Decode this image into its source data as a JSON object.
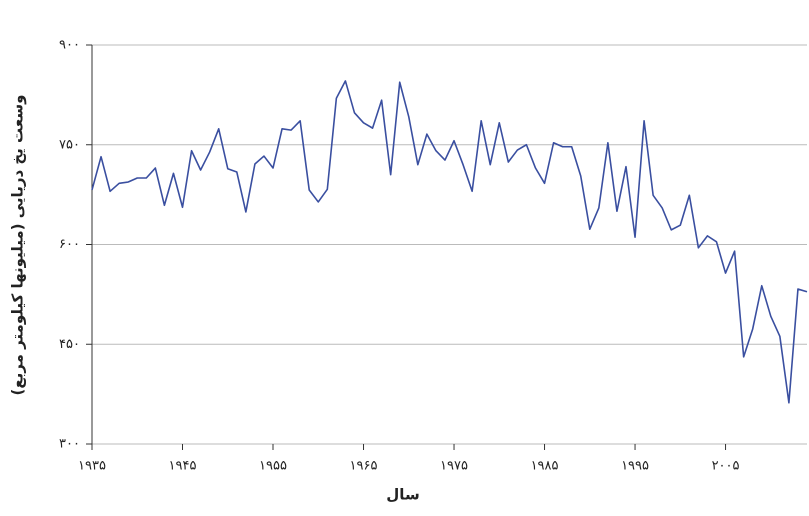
{
  "chart_data": {
    "type": "line",
    "x_label": "سال",
    "y_label": "وسعت یخ دریایی (میلیونها کیلومتر مربع)",
    "x": [
      1935,
      1936,
      1937,
      1938,
      1939,
      1940,
      1941,
      1942,
      1943,
      1944,
      1945,
      1946,
      1947,
      1948,
      1949,
      1950,
      1951,
      1952,
      1953,
      1954,
      1955,
      1956,
      1957,
      1958,
      1959,
      1960,
      1961,
      1962,
      1963,
      1964,
      1965,
      1966,
      1967,
      1968,
      1969,
      1970,
      1971,
      1972,
      1973,
      1974,
      1975,
      1976,
      1977,
      1978,
      1979,
      1980,
      1981,
      1982,
      1983,
      1984,
      1985,
      1986,
      1987,
      1988,
      1989,
      1990,
      1991,
      1992,
      1993,
      1994,
      1995,
      1996,
      1997,
      1998,
      1999,
      2000,
      2001,
      2002,
      2003,
      2004,
      2005,
      2006,
      2007,
      2008,
      2009,
      2010,
      2011,
      2012,
      2013,
      2014
    ],
    "series": [
      {
        "color": "#3a4fa0",
        "values": [
          682,
          732,
          680,
          692,
          694,
          700,
          700,
          715,
          659,
          707,
          656,
          741,
          712,
          739,
          774,
          714,
          709,
          649,
          721,
          733,
          715,
          774,
          772,
          786,
          682,
          664,
          683,
          820,
          846,
          798,
          783,
          775,
          817,
          705,
          844,
          792,
          720,
          766,
          741,
          727,
          756,
          720,
          680,
          786,
          720,
          783,
          724,
          742,
          750,
          715,
          692,
          753,
          747,
          747,
          703,
          623,
          655,
          753,
          650,
          717,
          611,
          786,
          674,
          655,
          622,
          629,
          674,
          595,
          613,
          604,
          557,
          590,
          431,
          473,
          538,
          492,
          462,
          362,
          533,
          529
        ]
      }
    ],
    "xlim": [
      1935,
      2014
    ],
    "ylim": [
      300,
      900
    ],
    "xticks": [
      {
        "value": 1935,
        "label": "۱۹۳۵"
      },
      {
        "value": 1945,
        "label": "۱۹۴۵"
      },
      {
        "value": 1955,
        "label": "۱۹۵۵"
      },
      {
        "value": 1965,
        "label": "۱۹۶۵"
      },
      {
        "value": 1975,
        "label": "۱۹۷۵"
      },
      {
        "value": 1985,
        "label": "۱۹۸۵"
      },
      {
        "value": 1995,
        "label": "۱۹۹۵"
      },
      {
        "value": 2005,
        "label": "۲۰۰۵"
      }
    ],
    "yticks": [
      {
        "value": 300,
        "label": "۳۰۰"
      },
      {
        "value": 450,
        "label": "۴۵۰"
      },
      {
        "value": 600,
        "label": "۶۰۰"
      },
      {
        "value": 750,
        "label": "۷۵۰"
      },
      {
        "value": 900,
        "label": "۹۰۰"
      }
    ],
    "grid": true
  }
}
